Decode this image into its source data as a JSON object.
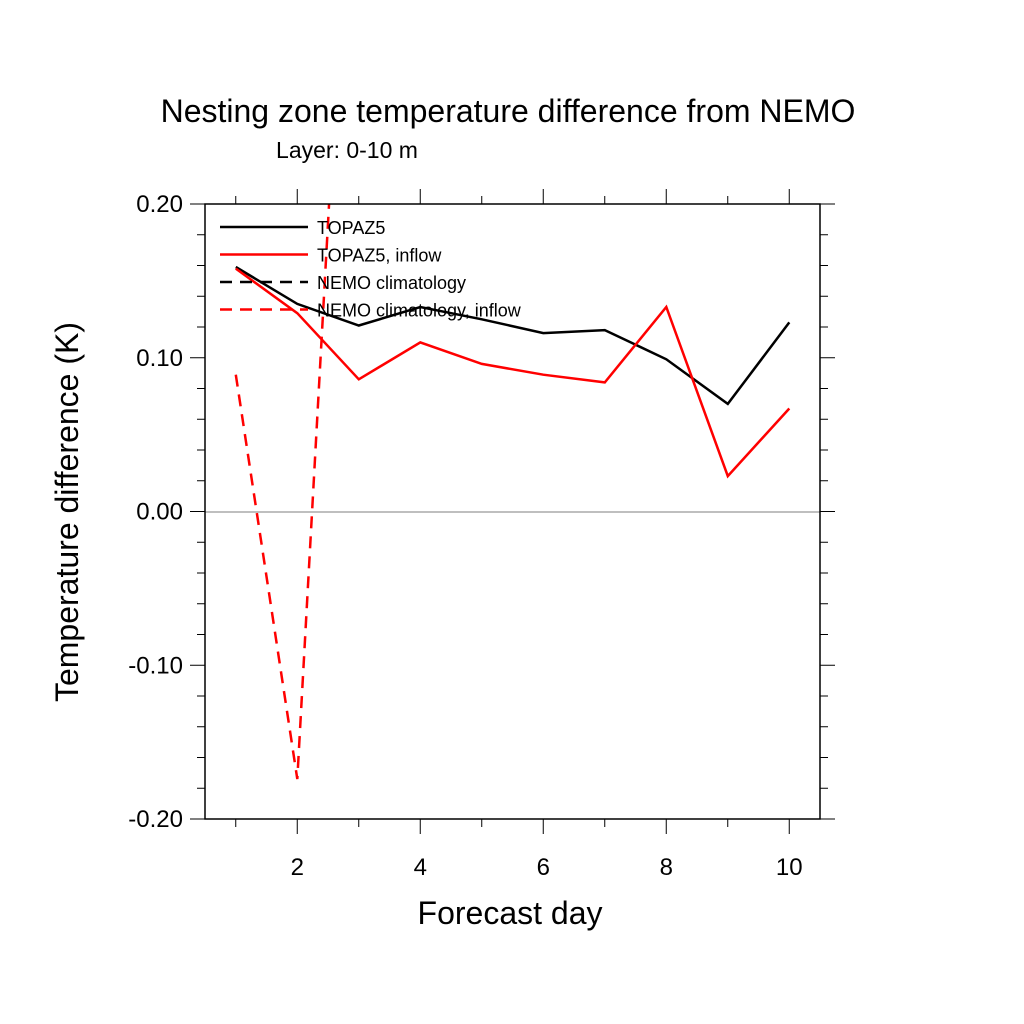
{
  "chart_data": {
    "type": "line",
    "title": "Nesting zone temperature difference from NEMO",
    "subtitle": "Layer: 0-10 m",
    "xlabel": "Forecast day",
    "ylabel": "Temperature difference (K)",
    "xlim": [
      0.5,
      10.5
    ],
    "ylim": [
      -0.2,
      0.2
    ],
    "xticks": [
      2,
      4,
      6,
      8,
      10
    ],
    "yticks": [
      -0.2,
      -0.1,
      0.0,
      0.1,
      0.2
    ],
    "xtick_labels": [
      "2",
      "4",
      "6",
      "8",
      "10"
    ],
    "ytick_labels": [
      "-0.20",
      "-0.10",
      "0.00",
      "0.10",
      "0.20"
    ],
    "zero_line": true,
    "legend_position": "top-left",
    "series": [
      {
        "name": "TOPAZ5",
        "color": "#000000",
        "dash": "solid",
        "x": [
          1,
          2,
          3,
          4,
          5,
          6,
          7,
          8,
          9,
          10
        ],
        "y": [
          0.159,
          0.135,
          0.121,
          0.133,
          0.125,
          0.116,
          0.118,
          0.099,
          0.07,
          0.123
        ]
      },
      {
        "name": "TOPAZ5, inflow",
        "color": "#ff0000",
        "dash": "solid",
        "x": [
          1,
          2,
          3,
          4,
          5,
          6,
          7,
          8,
          9,
          10
        ],
        "y": [
          0.158,
          0.129,
          0.086,
          0.11,
          0.096,
          0.089,
          0.084,
          0.133,
          0.023,
          0.067
        ]
      },
      {
        "name": "NEMO climatology",
        "color": "#000000",
        "dash": "dashed",
        "x": [],
        "y": []
      },
      {
        "name": "NEMO climatology, inflow",
        "color": "#ff0000",
        "dash": "dashed",
        "x": [
          1,
          2,
          3
        ],
        "y": [
          0.089,
          -0.174,
          0.55
        ]
      }
    ]
  }
}
